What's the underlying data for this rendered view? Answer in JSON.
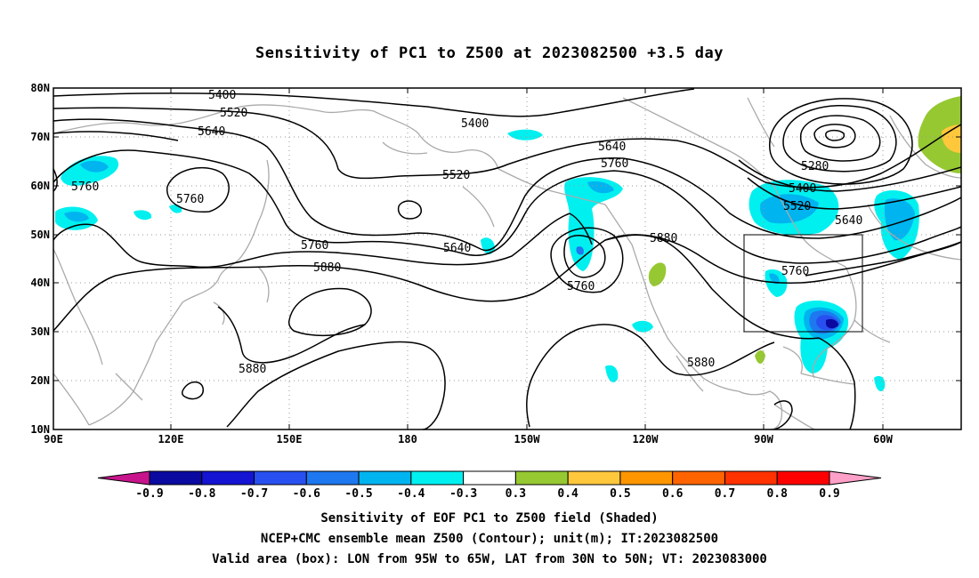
{
  "title": "Sensitivity of PC1 to Z500 at 2023082500 +3.5 day",
  "lat_labels": [
    "80N",
    "70N",
    "60N",
    "50N",
    "40N",
    "30N",
    "20N",
    "10N"
  ],
  "lon_labels": [
    "90E",
    "120E",
    "150E",
    "180",
    "150W",
    "120W",
    "90W",
    "60W"
  ],
  "contour_labels": [
    {
      "text": "5400"
    },
    {
      "text": "5520"
    },
    {
      "text": "5640"
    },
    {
      "text": "5400"
    },
    {
      "text": "5640"
    },
    {
      "text": "5760"
    },
    {
      "text": "5520"
    },
    {
      "text": "5760"
    },
    {
      "text": "5760"
    },
    {
      "text": "5640"
    },
    {
      "text": "5760"
    },
    {
      "text": "5880"
    },
    {
      "text": "5760"
    },
    {
      "text": "5880"
    },
    {
      "text": "5880"
    },
    {
      "text": "5280"
    },
    {
      "text": "5400"
    },
    {
      "text": "5520"
    },
    {
      "text": "5640"
    },
    {
      "text": "5760"
    },
    {
      "text": "5880"
    }
  ],
  "colorbar": {
    "labels": [
      "-0.9",
      "-0.8",
      "-0.7",
      "-0.6",
      "-0.5",
      "-0.4",
      "-0.3",
      "0.3",
      "0.4",
      "0.5",
      "0.6",
      "0.7",
      "0.8",
      "0.9"
    ],
    "colors": [
      "#0a0aa0",
      "#1414d2",
      "#2850f0",
      "#1e78f0",
      "#00b4f0",
      "#00f0f0",
      "#ffffff",
      "#96c832",
      "#ffc83c",
      "#ff9600",
      "#ff6400",
      "#ff3200",
      "#ff0000"
    ],
    "low_arrow_color": "#c8148c",
    "high_arrow_color": "#ffa0c8"
  },
  "captions": [
    "Sensitivity of EOF PC1 to Z500 field (Shaded)",
    "NCEP+CMC ensemble mean Z500 (Contour); unit(m); IT:2023082500",
    "Valid area (box): LON from 95W to 65W, LAT from 30N to 50N; VT: 2023083000"
  ],
  "valid_box": {
    "lon_min": -95,
    "lon_max": -65,
    "lat_min": 30,
    "lat_max": 50
  }
}
